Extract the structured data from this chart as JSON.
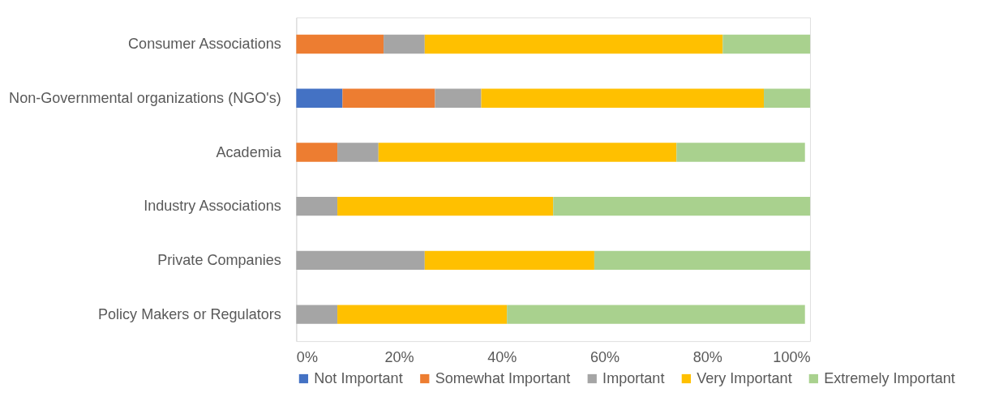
{
  "chart_data": {
    "type": "bar",
    "orientation": "horizontal",
    "stacked": true,
    "categories": [
      "Consumer Associations",
      "Non-Governmental organizations (NGO's)",
      "Academia",
      "Industry Associations",
      "Private Companies",
      "Policy Makers or Regulators"
    ],
    "series": [
      {
        "name": "Not Important",
        "color": "#4472c4",
        "values": [
          0,
          9,
          0,
          0,
          0,
          0
        ]
      },
      {
        "name": "Somewhat Important",
        "color": "#ed7d31",
        "values": [
          17,
          18,
          8,
          0,
          0,
          0
        ]
      },
      {
        "name": "Important",
        "color": "#a5a5a5",
        "values": [
          8,
          9,
          8,
          8,
          25,
          8
        ]
      },
      {
        "name": "Very Important",
        "color": "#ffc000",
        "values": [
          58,
          55,
          58,
          42,
          33,
          33
        ]
      },
      {
        "name": "Extremely Important",
        "color": "#a9d18e",
        "values": [
          17,
          9,
          25,
          50,
          42,
          58
        ]
      }
    ],
    "xlim": [
      0,
      100
    ],
    "xticks": [
      {
        "value": 0,
        "label": "0%"
      },
      {
        "value": 20,
        "label": "20%"
      },
      {
        "value": 40,
        "label": "40%"
      },
      {
        "value": 60,
        "label": "60%"
      },
      {
        "value": 80,
        "label": "80%"
      },
      {
        "value": 100,
        "label": "100%"
      }
    ],
    "grid": false,
    "legend": "bottom"
  }
}
